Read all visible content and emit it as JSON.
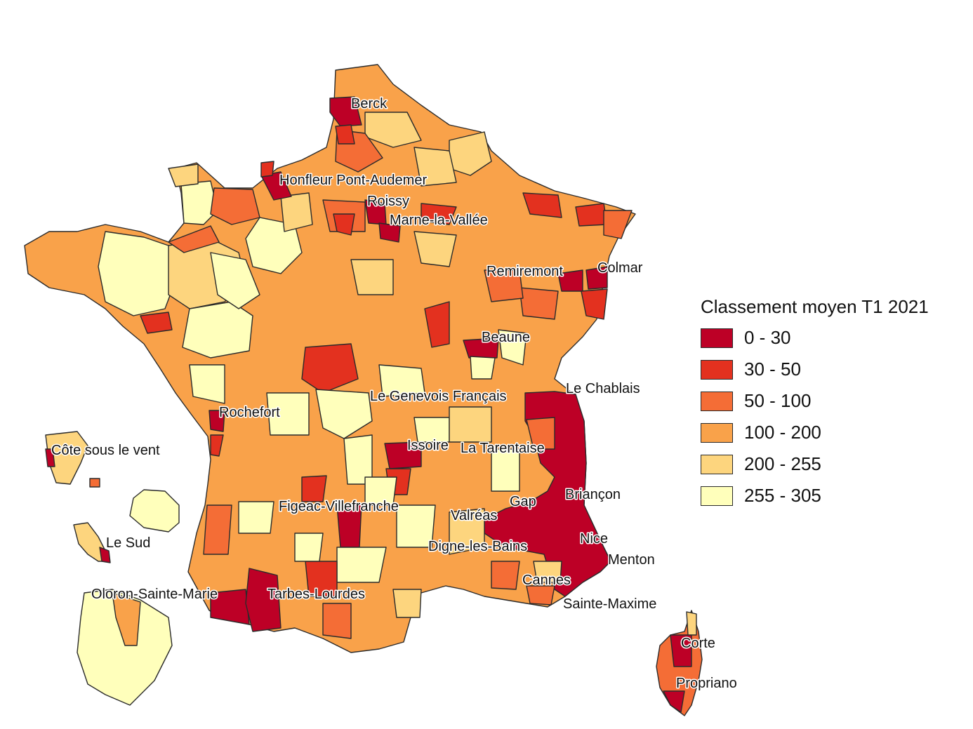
{
  "legend": {
    "title": "Classement moyen T1 2021",
    "classes": [
      {
        "label": "0 - 30",
        "color": "#bd0026"
      },
      {
        "label": "30 - 50",
        "color": "#e3311f"
      },
      {
        "label": "50 - 100",
        "color": "#f46d36"
      },
      {
        "label": "100 - 200",
        "color": "#f9a24a"
      },
      {
        "label": "200 - 255",
        "color": "#fdd57e"
      },
      {
        "label": "255 - 305",
        "color": "#ffffbb"
      }
    ]
  },
  "places": {
    "berck": "Berck",
    "honfleur": "Honfleur Pont-Audemer",
    "roissy": "Roissy",
    "marne_la_vallee": "Marne-la-Vallée",
    "remiremont": "Remiremont",
    "colmar": "Colmar",
    "beaune": "Beaune",
    "le_chablais": "Le Chablais",
    "le_genevois": "Le Genevois Français",
    "rochefort": "Rochefort",
    "issoire": "Issoire",
    "la_tarentaise": "La Tarentaise",
    "cote_sous_le_vent": "Côte sous le vent",
    "gap": "Gap",
    "briancon": "Briançon",
    "figeac": "Figeac-Villefranche",
    "valreas": "Valréas",
    "le_sud": "Le Sud",
    "digne": "Digne-les-Bains",
    "nice": "Nice",
    "menton": "Menton",
    "cannes": "Cannes",
    "oloron": "Oloron-Sainte-Marie",
    "tarbes": "Tarbes-Lourdes",
    "sainte_maxime": "Sainte-Maxime",
    "corte": "Corte",
    "propriano": "Propriano"
  }
}
